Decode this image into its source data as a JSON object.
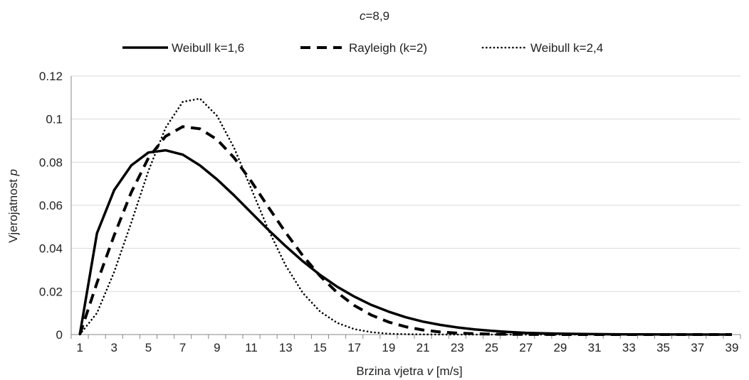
{
  "chart_data": {
    "type": "line",
    "title_parts": {
      "var": "c",
      "rest": "=8,9"
    },
    "xlabel_parts": {
      "pre": "Brzina vjetra ",
      "var": "v",
      "post": " [m/s]"
    },
    "ylabel_parts": {
      "pre": "Vjerojatnost ",
      "var": "p",
      "post": ""
    },
    "x": [
      1,
      2,
      3,
      4,
      5,
      6,
      7,
      8,
      9,
      10,
      11,
      12,
      13,
      14,
      15,
      16,
      17,
      18,
      19,
      20,
      21,
      22,
      23,
      24,
      25,
      26,
      27,
      28,
      29,
      30,
      31,
      32,
      33,
      34,
      35,
      36,
      37,
      38,
      39
    ],
    "xlim": [
      1,
      39
    ],
    "ylim": [
      0,
      0.12
    ],
    "y_ticks": [
      "0",
      "0.02",
      "0.04",
      "0.06",
      "0.08",
      "0.1",
      "0.12"
    ],
    "x_tick_labels": [
      "1",
      "3",
      "5",
      "7",
      "9",
      "11",
      "13",
      "15",
      "17",
      "19",
      "21",
      "23",
      "25",
      "27",
      "29",
      "31",
      "33",
      "35",
      "37",
      "39"
    ],
    "legend_position": "top-center",
    "grid": "horizontal",
    "series": [
      {
        "name": "Weibull k=1,6",
        "style": "solid",
        "color": "#000000",
        "values": [
          0,
          0.047,
          0.067,
          0.0785,
          0.0845,
          0.0855,
          0.0835,
          0.0785,
          0.072,
          0.0645,
          0.0565,
          0.0485,
          0.041,
          0.034,
          0.0277,
          0.0222,
          0.0176,
          0.0137,
          0.0106,
          0.008,
          0.006,
          0.0045,
          0.0033,
          0.0024,
          0.0017,
          0.0012,
          0.0008,
          0.0006,
          0.0004,
          0.0003,
          0.0002,
          0.00013,
          9e-05,
          6e-05,
          4e-05,
          2e-05,
          1e-05,
          1e-05,
          0.0
        ]
      },
      {
        "name": "Rayleigh (k=2)",
        "style": "dashed",
        "color": "#000000",
        "values": [
          0,
          0.024,
          0.046,
          0.066,
          0.082,
          0.092,
          0.0965,
          0.0955,
          0.0905,
          0.082,
          0.071,
          0.059,
          0.0473,
          0.0366,
          0.0272,
          0.0195,
          0.0135,
          0.009,
          0.0058,
          0.0036,
          0.0021,
          0.0012,
          0.0007,
          0.0004,
          0.0002,
          0.0001,
          5e-05,
          2e-05,
          1e-05,
          0,
          0,
          0,
          0,
          0,
          0,
          0,
          0,
          0,
          0
        ]
      },
      {
        "name": "Weibull k=2,4",
        "style": "dotted",
        "color": "#000000",
        "values": [
          0,
          0.01,
          0.029,
          0.052,
          0.076,
          0.096,
          0.108,
          0.1095,
          0.1015,
          0.0865,
          0.0675,
          0.0485,
          0.032,
          0.0193,
          0.0107,
          0.0054,
          0.0025,
          0.0011,
          0.0004,
          0.00015,
          5e-05,
          2e-05,
          0,
          0,
          0,
          0,
          0,
          0,
          0,
          0,
          0,
          0,
          0,
          0,
          0,
          0,
          0,
          0,
          0
        ]
      }
    ]
  }
}
